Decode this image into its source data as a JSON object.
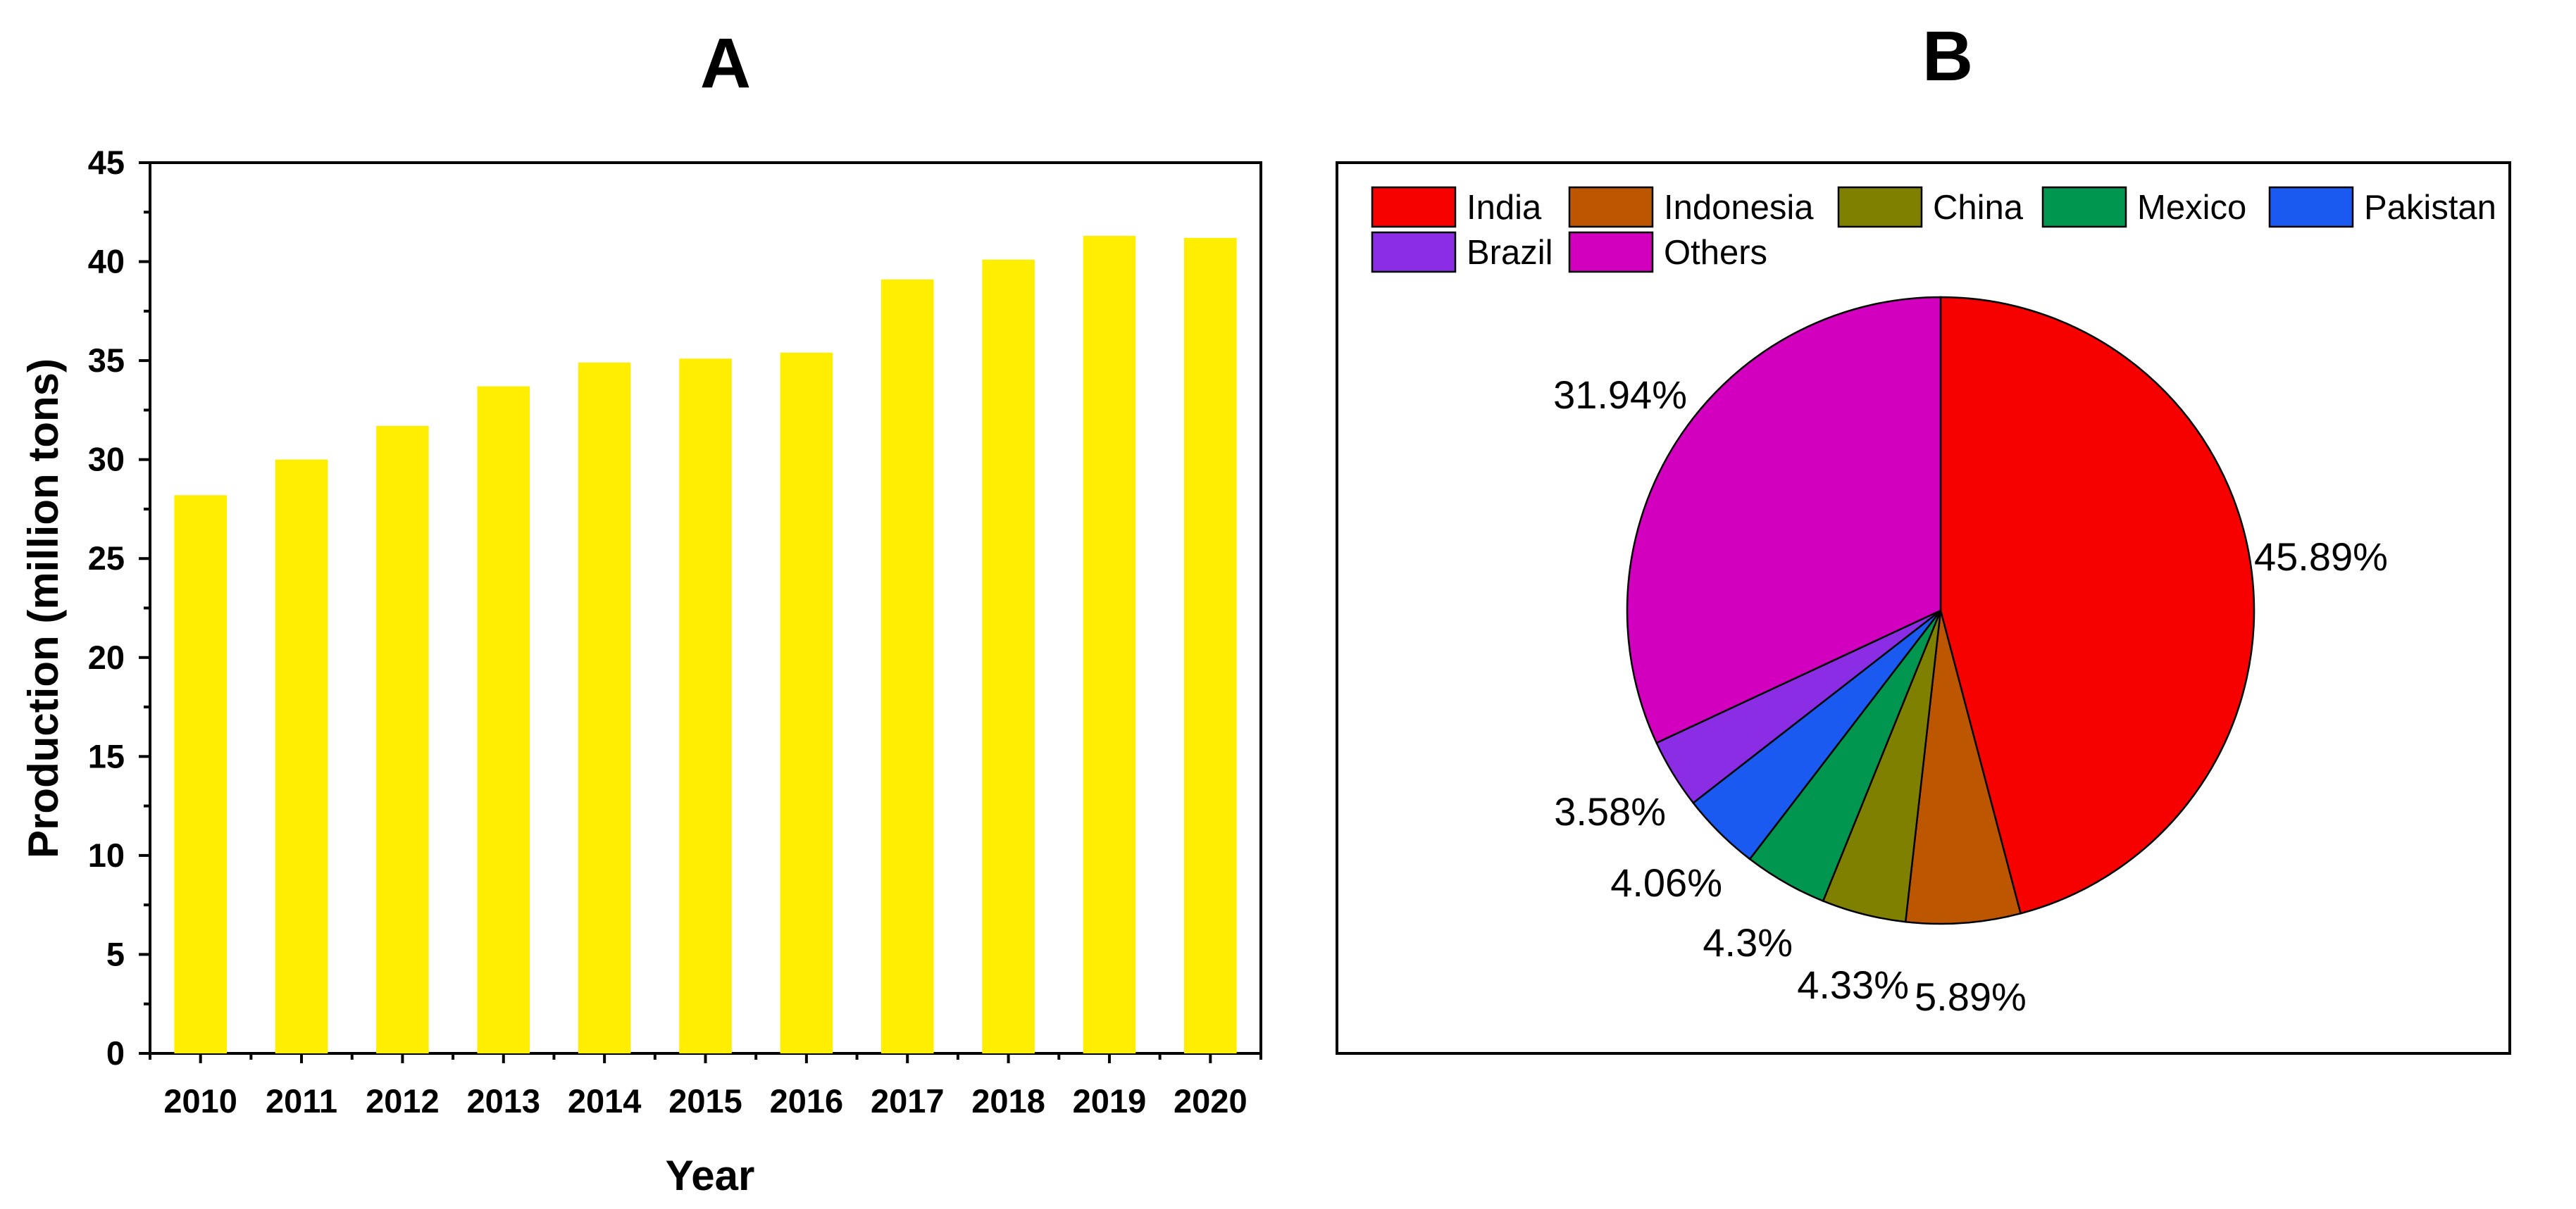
{
  "panel_letters": [
    "A",
    "B"
  ],
  "chart_data": [
    {
      "type": "bar",
      "title": "",
      "xlabel": "Year",
      "ylabel": "Production (million tons)",
      "categories": [
        "2010",
        "2011",
        "2012",
        "2013",
        "2014",
        "2015",
        "2016",
        "2017",
        "2018",
        "2019",
        "2020"
      ],
      "values": [
        28.2,
        30.0,
        31.7,
        33.7,
        34.9,
        35.1,
        35.4,
        39.1,
        40.1,
        41.3,
        41.2
      ],
      "ylim": [
        0,
        45
      ],
      "yticks": [
        "0",
        "5",
        "10",
        "15",
        "20",
        "25",
        "30",
        "35",
        "40",
        "45"
      ],
      "bar_color": "#FFEE00",
      "grid": false
    },
    {
      "type": "pie",
      "title": "",
      "legend_position": "top",
      "slices": [
        {
          "name": "India",
          "value": 45.89,
          "label": "45.89%",
          "color": "#F70000"
        },
        {
          "name": "Indonesia",
          "value": 5.89,
          "label": "5.89%",
          "color": "#BC5600"
        },
        {
          "name": "China",
          "value": 4.33,
          "label": "4.33%",
          "color": "#808000"
        },
        {
          "name": "Mexico",
          "value": 4.3,
          "label": "4.3%",
          "color": "#009650"
        },
        {
          "name": "Pakistan",
          "value": 4.06,
          "label": "4.06%",
          "color": "#1A5AF0"
        },
        {
          "name": "Brazil",
          "value": 3.58,
          "label": "3.58%",
          "color": "#8C2DE6"
        },
        {
          "name": "Others",
          "value": 31.94,
          "label": "31.94%",
          "color": "#D200BE"
        }
      ]
    }
  ]
}
